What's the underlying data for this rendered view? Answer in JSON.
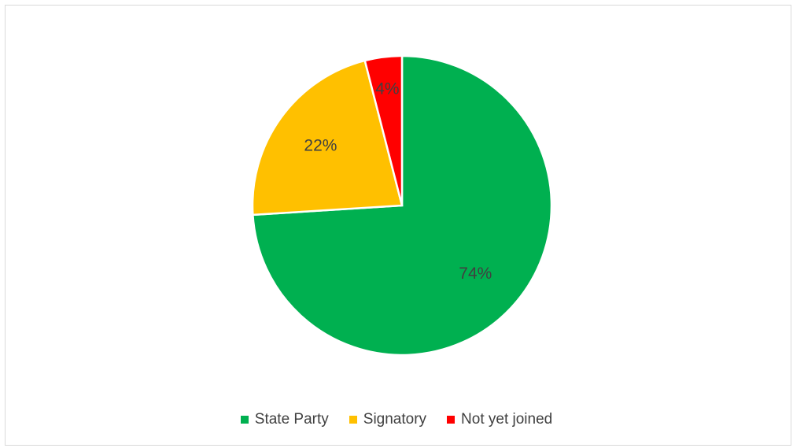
{
  "chart_data": {
    "type": "pie",
    "categories": [
      "State Party",
      "Signatory",
      "Not yet joined"
    ],
    "values": [
      74,
      22,
      4
    ],
    "data_labels": [
      "74%",
      "22%",
      "4%"
    ],
    "colors": [
      "#00b050",
      "#ffc000",
      "#ff0000"
    ],
    "legend_position": "bottom",
    "title": ""
  }
}
